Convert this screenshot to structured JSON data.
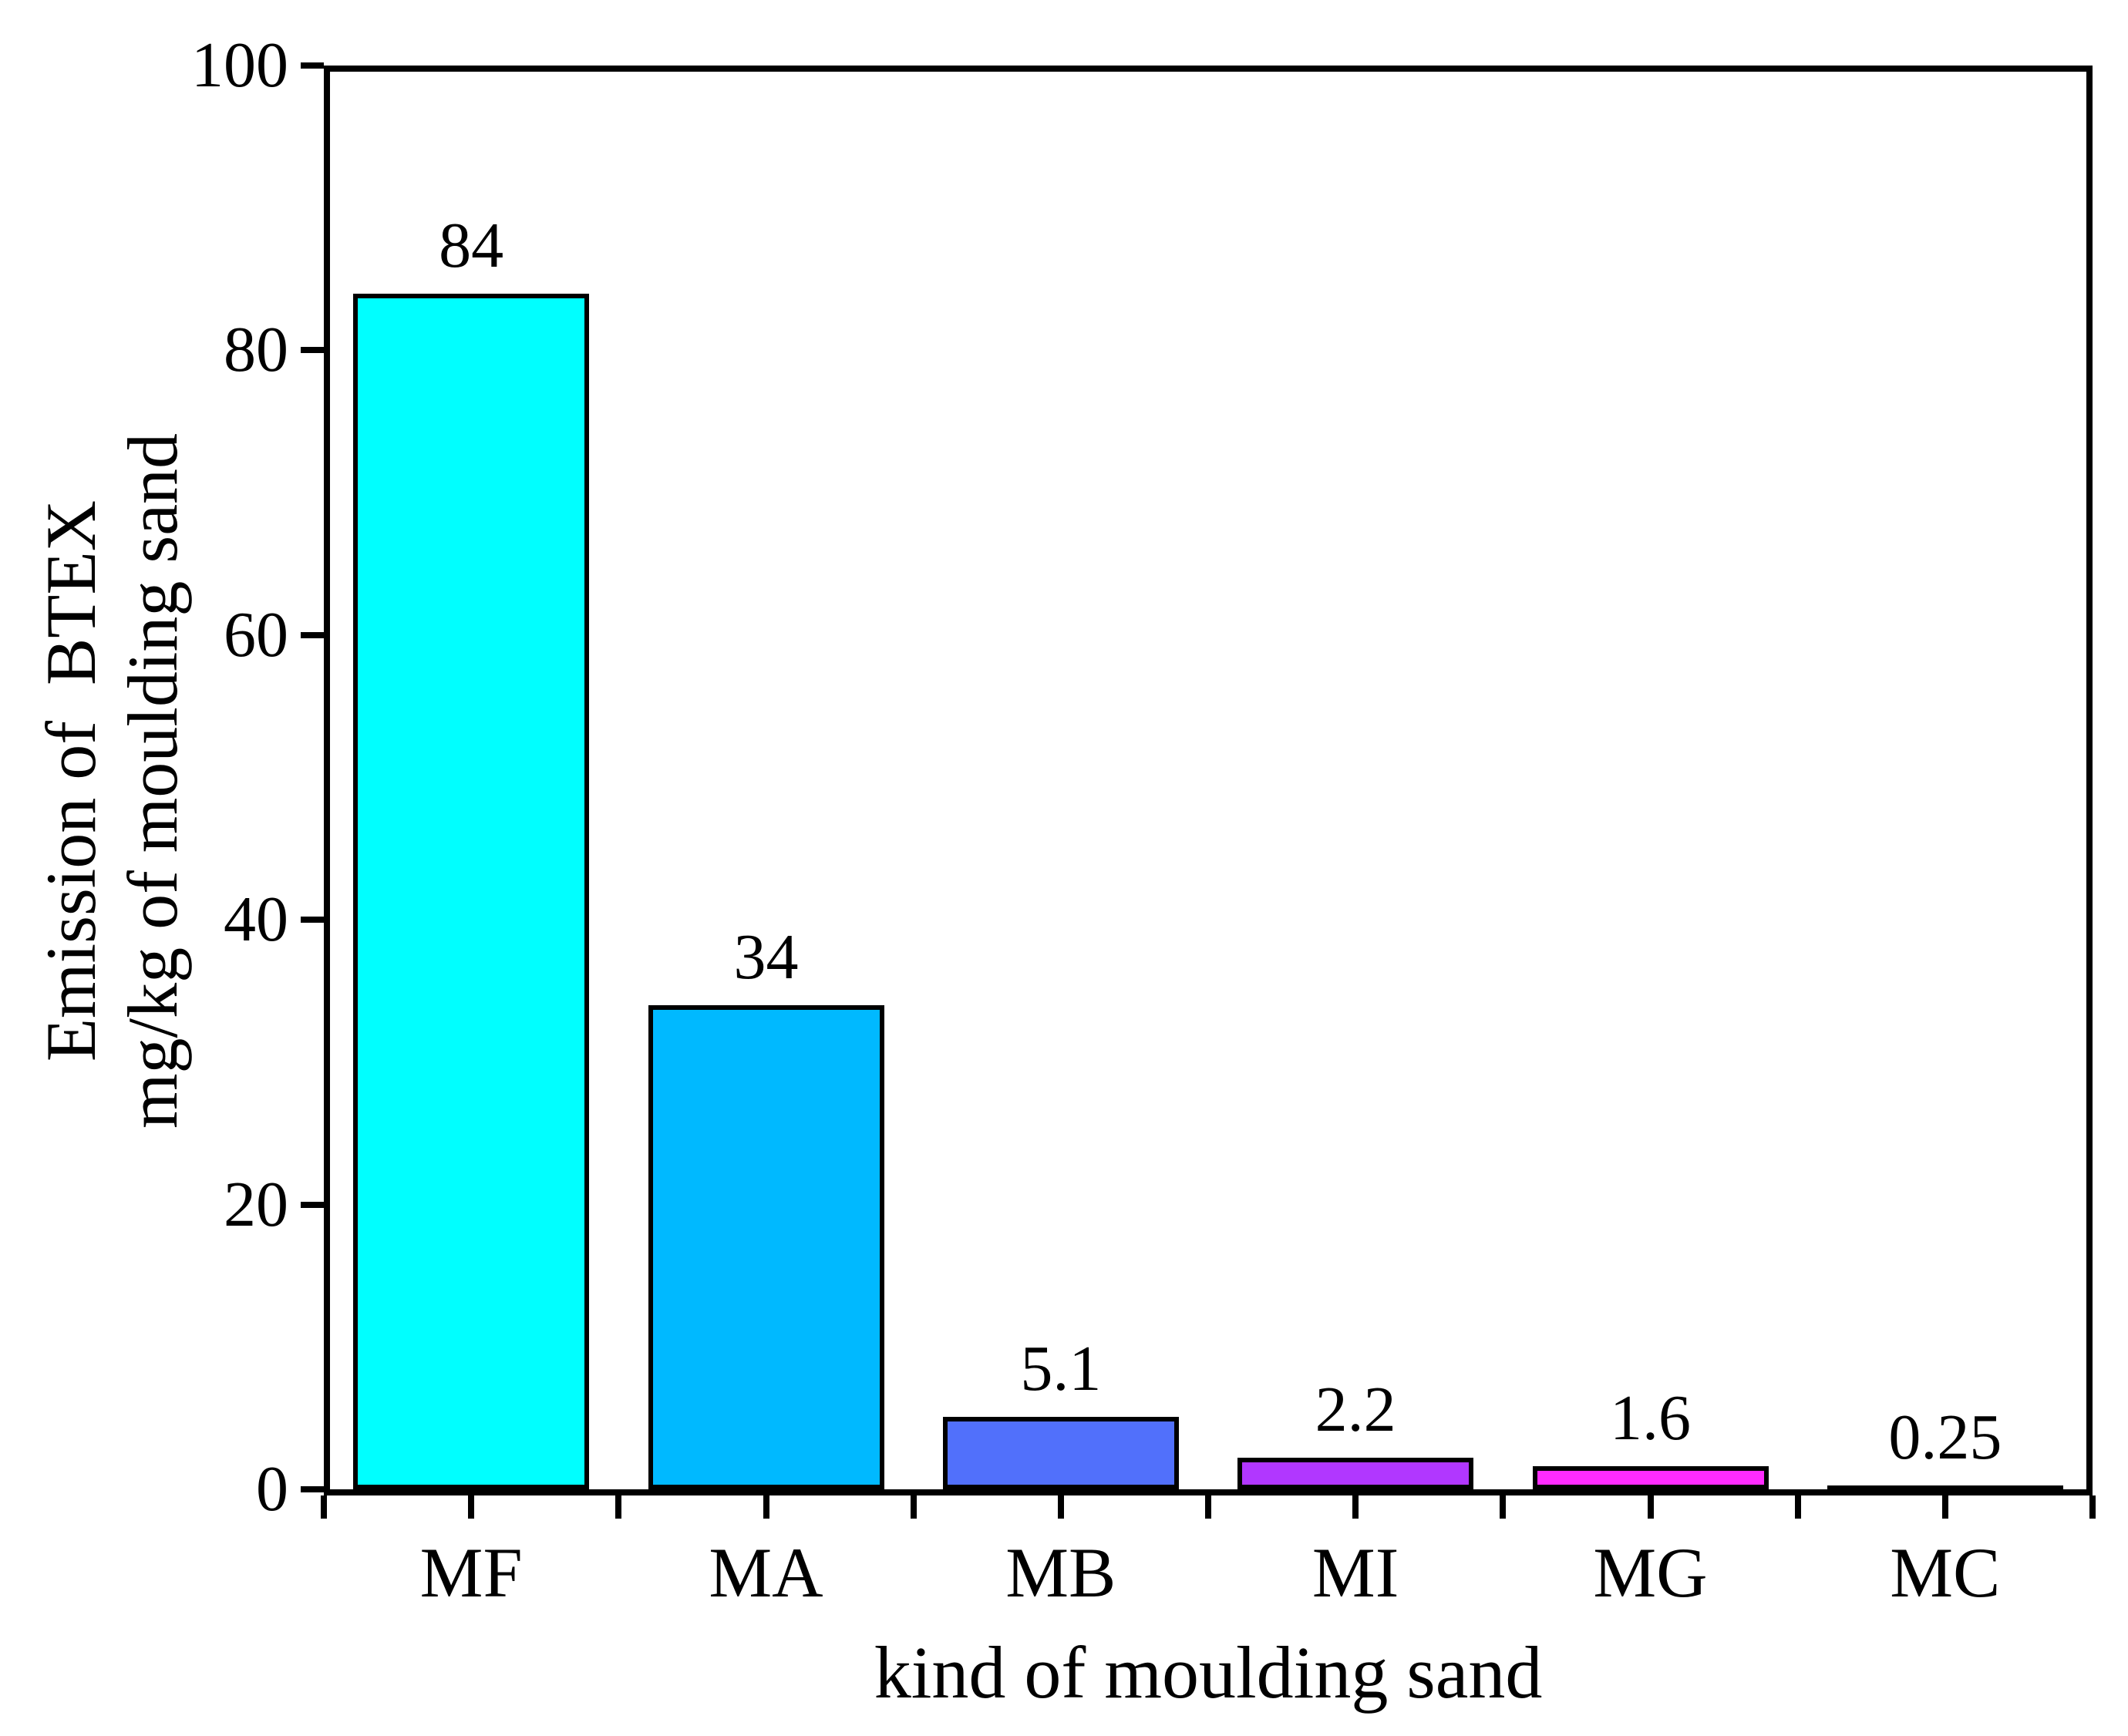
{
  "chart_data": {
    "type": "bar",
    "categories": [
      "MF",
      "MA",
      "MB",
      "MI",
      "MG",
      "MC"
    ],
    "values": [
      84,
      34,
      5.1,
      2.2,
      1.6,
      0.25
    ],
    "value_labels": [
      "84",
      "34",
      "5.1",
      "2.2",
      "1.6",
      "0.25"
    ],
    "bar_colors": [
      "#00ffff",
      "#00b9ff",
      "#5170fb",
      "#b137ff",
      "#ff2bff",
      "#ff2bff"
    ],
    "bar_edge_color": "#000000",
    "axis_color": "#000000",
    "background_color": "#ffffff",
    "title": "",
    "xlabel": "kind of moulding sand",
    "ylabel_line1": "Emission of  BTEX",
    "ylabel_line2": "mg/kg of moulding sand",
    "ylim": [
      0,
      100
    ],
    "yticks": [
      0,
      20,
      40,
      60,
      80,
      100
    ],
    "grid": false,
    "legend": "none",
    "layout_hints": {
      "box_frame": true,
      "y_tick_direction": "out",
      "x_tick_positions": "category centers and boundaries",
      "value_labels_position": "above bars"
    }
  }
}
